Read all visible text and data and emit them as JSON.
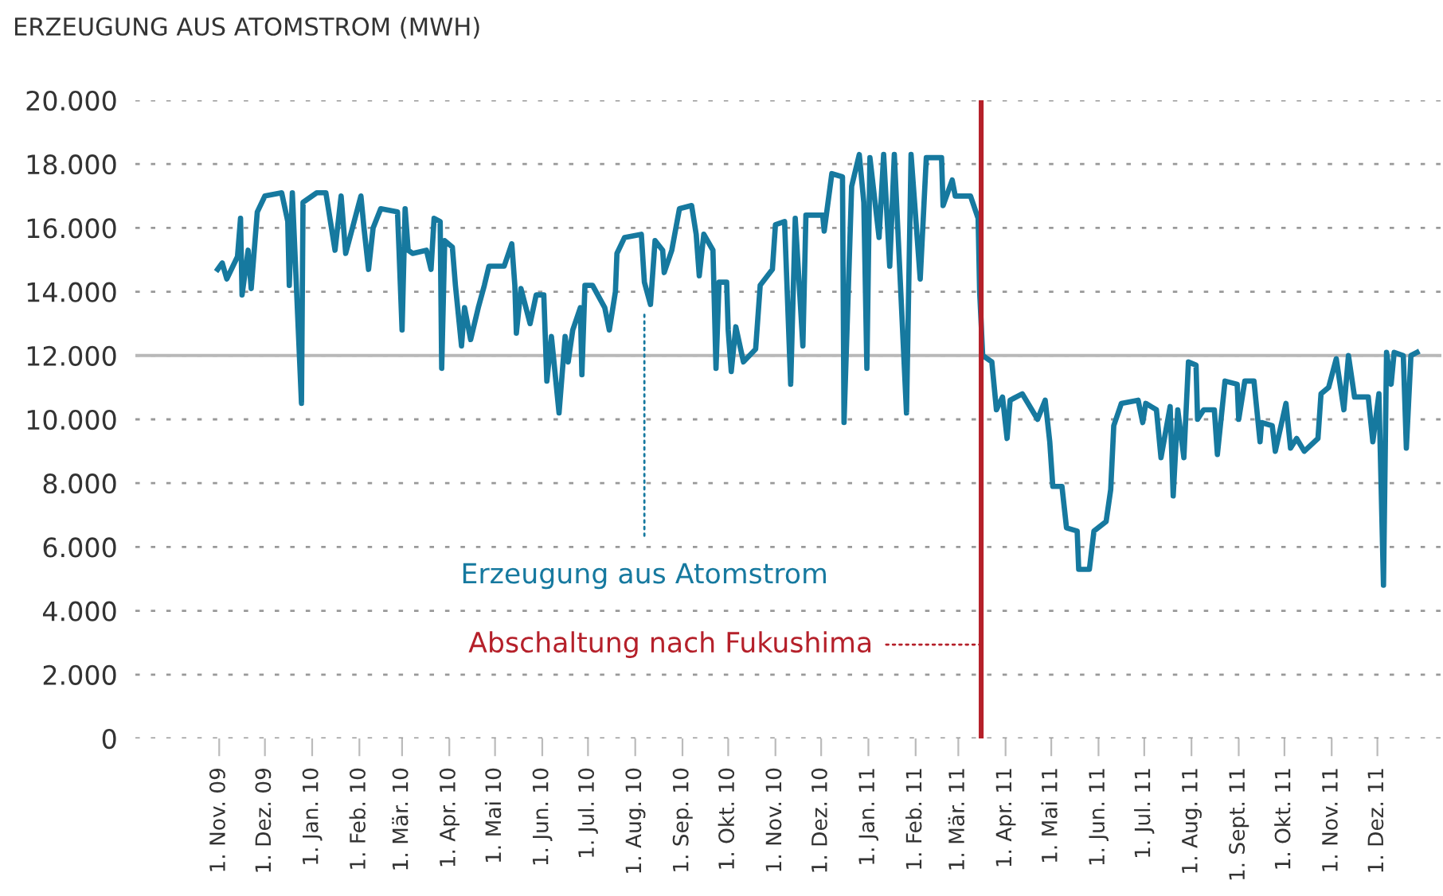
{
  "chart_data": {
    "type": "line",
    "title": "ERZEUGUNG AUS ATOMSTROM (MWH)",
    "x": [
      "2009-10-31",
      "2009-11-03",
      "2009-11-06",
      "2009-11-13",
      "2009-11-15",
      "2009-11-16",
      "2009-11-20",
      "2009-11-22",
      "2009-11-26",
      "2009-12-01",
      "2009-12-12",
      "2009-12-16",
      "2009-12-17",
      "2009-12-19",
      "2009-12-25",
      "2009-12-26",
      "2010-01-04",
      "2010-01-10",
      "2010-01-16",
      "2010-01-20",
      "2010-01-23",
      "2010-02-02",
      "2010-02-04",
      "2010-02-07",
      "2010-02-10",
      "2010-02-15",
      "2010-02-26",
      "2010-02-27",
      "2010-03-01",
      "2010-03-03",
      "2010-03-05",
      "2010-03-08",
      "2010-03-17",
      "2010-03-20",
      "2010-03-22",
      "2010-03-26",
      "2010-03-27",
      "2010-03-29",
      "2010-04-03",
      "2010-04-05",
      "2010-04-09",
      "2010-04-11",
      "2010-04-15",
      "2010-04-20",
      "2010-04-24",
      "2010-04-27",
      "2010-05-07",
      "2010-05-12",
      "2010-05-14",
      "2010-05-15",
      "2010-05-18",
      "2010-05-24",
      "2010-05-28",
      "2010-06-02",
      "2010-06-04",
      "2010-06-07",
      "2010-06-12",
      "2010-06-16",
      "2010-06-18",
      "2010-06-21",
      "2010-06-26",
      "2010-06-27",
      "2010-06-29",
      "2010-07-04",
      "2010-07-12",
      "2010-07-15",
      "2010-07-19",
      "2010-07-20",
      "2010-07-25",
      "2010-08-05",
      "2010-08-07",
      "2010-08-11",
      "2010-08-14",
      "2010-08-19",
      "2010-08-20",
      "2010-08-25",
      "2010-08-30",
      "2010-09-07",
      "2010-09-10",
      "2010-09-12",
      "2010-09-15",
      "2010-09-21",
      "2010-09-23",
      "2010-09-25",
      "2010-09-30",
      "2010-10-01",
      "2010-10-03",
      "2010-10-06",
      "2010-10-11",
      "2010-10-19",
      "2010-10-22",
      "2010-10-30",
      "2010-11-01",
      "2010-11-07",
      "2010-11-11",
      "2010-11-14",
      "2010-11-19",
      "2010-11-21",
      "2010-12-02",
      "2010-12-03",
      "2010-12-08",
      "2010-12-15",
      "2010-12-16",
      "2010-12-21",
      "2010-12-26",
      "2010-12-29",
      "2010-12-31",
      "2011-01-02",
      "2011-01-08",
      "2011-01-11",
      "2011-01-15",
      "2011-01-18",
      "2011-01-26",
      "2011-01-29",
      "2011-02-04",
      "2011-02-08",
      "2011-02-18",
      "2011-02-19",
      "2011-02-25",
      "2011-02-27",
      "2011-03-09",
      "2011-03-14",
      "2011-03-15",
      "2011-03-17",
      "2011-03-23",
      "2011-03-26",
      "2011-03-30",
      "2011-04-02",
      "2011-04-04",
      "2011-04-12",
      "2011-04-22",
      "2011-04-27",
      "2011-04-30",
      "2011-05-02",
      "2011-05-08",
      "2011-05-11",
      "2011-05-18",
      "2011-05-19",
      "2011-05-26",
      "2011-05-29",
      "2011-06-06",
      "2011-06-09",
      "2011-06-11",
      "2011-06-16",
      "2011-06-27",
      "2011-06-30",
      "2011-07-02",
      "2011-07-09",
      "2011-07-12",
      "2011-07-18",
      "2011-07-20",
      "2011-07-23",
      "2011-07-27",
      "2011-07-30",
      "2011-08-04",
      "2011-08-05",
      "2011-08-09",
      "2011-08-16",
      "2011-08-18",
      "2011-08-23",
      "2011-08-31",
      "2011-09-01",
      "2011-09-05",
      "2011-09-11",
      "2011-09-15",
      "2011-09-16",
      "2011-09-23",
      "2011-09-25",
      "2011-10-02",
      "2011-10-05",
      "2011-10-09",
      "2011-10-14",
      "2011-10-23",
      "2011-10-25",
      "2011-10-30",
      "2011-11-04",
      "2011-11-09",
      "2011-11-12",
      "2011-11-16",
      "2011-11-25",
      "2011-11-28",
      "2011-12-02",
      "2011-12-05",
      "2011-12-07",
      "2011-12-10",
      "2011-12-12",
      "2011-12-18",
      "2011-12-20",
      "2011-12-23",
      "2011-12-27"
    ],
    "series": [
      {
        "name": "Erzeugung aus Atomstrom",
        "color": "#16799f",
        "values": [
          14700,
          14900,
          14400,
          15100,
          16300,
          13900,
          15300,
          14100,
          16500,
          17000,
          17100,
          16200,
          14200,
          17100,
          10500,
          16800,
          17100,
          17100,
          15300,
          17000,
          15200,
          17000,
          16000,
          14700,
          16000,
          16600,
          16500,
          15300,
          12800,
          16600,
          15300,
          15200,
          15300,
          14700,
          16300,
          16200,
          11600,
          15600,
          15400,
          14200,
          12300,
          13500,
          12500,
          13500,
          14200,
          14800,
          14800,
          15500,
          14200,
          12700,
          14100,
          13000,
          13900,
          13900,
          11200,
          12600,
          10200,
          12600,
          11800,
          12800,
          13500,
          11400,
          14200,
          14200,
          13500,
          12800,
          14000,
          15200,
          15700,
          15800,
          14300,
          13600,
          15600,
          15300,
          14600,
          15300,
          16600,
          16700,
          15800,
          14500,
          15800,
          15300,
          11600,
          14300,
          14300,
          12800,
          11500,
          12900,
          11800,
          12200,
          14200,
          14700,
          16100,
          16200,
          11100,
          16300,
          12300,
          16400,
          16400,
          15900,
          17700,
          17600,
          9900,
          17300,
          18300,
          16800,
          11600,
          18200,
          15700,
          18300,
          14800,
          18300,
          10200,
          18300,
          14400,
          18200,
          18200,
          16700,
          17500,
          17000,
          17000,
          16300,
          14000,
          12000,
          11800,
          10300,
          10700,
          9400,
          10600,
          10800,
          10000,
          10600,
          9300,
          7900,
          7900,
          6600,
          6500,
          5300,
          5300,
          6500,
          6800,
          7800,
          9800,
          10500,
          10600,
          9900,
          10500,
          10300,
          8800,
          10400,
          7600,
          10300,
          8800,
          11800,
          11700,
          10000,
          10300,
          10300,
          8900,
          11200,
          11100,
          10000,
          11200,
          11200,
          9300,
          9900,
          9800,
          9000,
          10500,
          9100,
          9400,
          9000,
          9400,
          10800,
          11000,
          11900,
          10300,
          12000,
          10700,
          10700,
          9300,
          10800,
          4800,
          12100,
          11100,
          12100,
          12000,
          9100,
          12000,
          12100
        ]
      }
    ],
    "xlim": [
      "2009-09-07",
      "2012-01-12"
    ],
    "xticks": [
      {
        "value": "2009-11-01",
        "label": "1. Nov. 09"
      },
      {
        "value": "2009-12-01",
        "label": "1. Dez. 09"
      },
      {
        "value": "2010-01-01",
        "label": "1. Jan. 10"
      },
      {
        "value": "2010-02-01",
        "label": "1. Feb. 10"
      },
      {
        "value": "2010-03-01",
        "label": "1. Mär. 10"
      },
      {
        "value": "2010-04-01",
        "label": "1. Apr. 10"
      },
      {
        "value": "2010-05-01",
        "label": "1. Mai 10"
      },
      {
        "value": "2010-06-01",
        "label": "1. Jun. 10"
      },
      {
        "value": "2010-07-01",
        "label": "1. Jul. 10"
      },
      {
        "value": "2010-08-01",
        "label": "1. Aug. 10"
      },
      {
        "value": "2010-09-01",
        "label": "1. Sep. 10"
      },
      {
        "value": "2010-10-01",
        "label": "1. Okt. 10"
      },
      {
        "value": "2010-11-01",
        "label": "1. Nov. 10"
      },
      {
        "value": "2010-12-01",
        "label": "1. Dez. 10"
      },
      {
        "value": "2011-01-01",
        "label": "1. Jan. 11"
      },
      {
        "value": "2011-02-01",
        "label": "1. Feb. 11"
      },
      {
        "value": "2011-03-01",
        "label": "1. Mär. 11"
      },
      {
        "value": "2011-04-01",
        "label": "1. Apr. 11"
      },
      {
        "value": "2011-05-01",
        "label": "1. Mai 11"
      },
      {
        "value": "2011-06-01",
        "label": "1. Jun. 11"
      },
      {
        "value": "2011-07-01",
        "label": "1. Jul. 11"
      },
      {
        "value": "2011-08-01",
        "label": "1. Aug. 11"
      },
      {
        "value": "2011-09-01",
        "label": "1. Sept. 11"
      },
      {
        "value": "2011-10-01",
        "label": "1. Okt. 11"
      },
      {
        "value": "2011-11-01",
        "label": "1. Nov. 11"
      },
      {
        "value": "2011-12-01",
        "label": "1. Dez. 11"
      }
    ],
    "ylim": [
      0,
      20000
    ],
    "yticks": [
      {
        "value": 0,
        "label": "0"
      },
      {
        "value": 2000,
        "label": "2.000"
      },
      {
        "value": 4000,
        "label": "4.000"
      },
      {
        "value": 6000,
        "label": "6.000"
      },
      {
        "value": 8000,
        "label": "8.000"
      },
      {
        "value": 10000,
        "label": "10.000"
      },
      {
        "value": 12000,
        "label": "12.000"
      },
      {
        "value": 14000,
        "label": "14.000"
      },
      {
        "value": 16000,
        "label": "16.000"
      },
      {
        "value": 18000,
        "label": "18.000"
      },
      {
        "value": 20000,
        "label": "20.000"
      }
    ],
    "grid": "y",
    "legend": false,
    "line_style": "solid",
    "ref_lines": [
      {
        "axis": "y",
        "value": 12000,
        "label": null,
        "color": "#b8b8b8",
        "line_style": "solid"
      },
      {
        "axis": "x",
        "value": "2011-03-16",
        "label": "Abschaltung nach Fukushima",
        "color": "#b5202a",
        "line_style": "solid"
      }
    ]
  }
}
